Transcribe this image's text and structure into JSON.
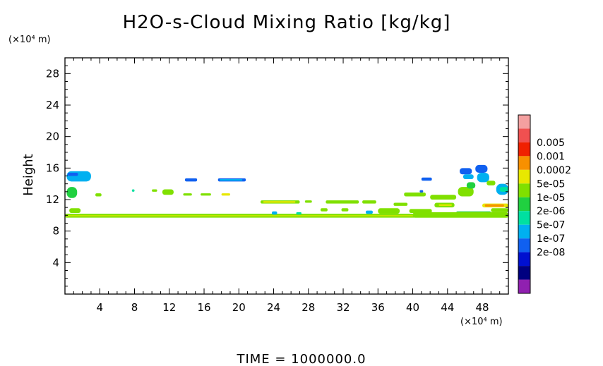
{
  "chart_data": {
    "type": "heatmap",
    "title": "H2O-s-Cloud Mixing Ratio [kg/kg]",
    "x_unit": "(×10⁴ m)",
    "y_unit": "(×10⁴ m)",
    "ylabel": "Height",
    "xlim": [
      0,
      51
    ],
    "ylim": [
      0,
      30
    ],
    "x_ticks": [
      4,
      8,
      12,
      16,
      20,
      24,
      28,
      32,
      36,
      40,
      44,
      48
    ],
    "y_ticks": [
      4,
      8,
      12,
      16,
      20,
      24,
      28
    ],
    "footer": "TIME  =  1000000.0",
    "legend": [
      {
        "label": "",
        "color": "#f4a0a0"
      },
      {
        "label": "0.005",
        "color": "#f05050"
      },
      {
        "label": "0.001",
        "color": "#f02000"
      },
      {
        "label": "0.0002",
        "color": "#f89000"
      },
      {
        "label": "5e-05",
        "color": "#e8e800"
      },
      {
        "label": "1e-05",
        "color": "#80e000"
      },
      {
        "label": "2e-06",
        "color": "#20d040"
      },
      {
        "label": "5e-07",
        "color": "#00e0a0"
      },
      {
        "label": "1e-07",
        "color": "#00b0f0"
      },
      {
        "label": "2e-08",
        "color": "#1060f0"
      },
      {
        "label": "",
        "color": "#0010d0"
      },
      {
        "label": "",
        "color": "#000080"
      },
      {
        "label": "",
        "color": "#9020b0"
      }
    ],
    "regions": [
      {
        "x0": 0,
        "x1": 51,
        "y0": 9.7,
        "y1": 10.2,
        "c": "#80e000"
      },
      {
        "x0": 0,
        "x1": 51,
        "y0": 9.9,
        "y1": 10.0,
        "c": "#e8e800"
      },
      {
        "x0": 0.2,
        "x1": 3.0,
        "y0": 14.3,
        "y1": 15.6,
        "c": "#00b0f0"
      },
      {
        "x0": 0.3,
        "x1": 1.5,
        "y0": 15.0,
        "y1": 15.4,
        "c": "#1060f0"
      },
      {
        "x0": 0.2,
        "x1": 1.4,
        "y0": 12.2,
        "y1": 13.6,
        "c": "#20d040"
      },
      {
        "x0": 0.5,
        "x1": 1.8,
        "y0": 10.3,
        "y1": 10.9,
        "c": "#80e000"
      },
      {
        "x0": 3.5,
        "x1": 4.2,
        "y0": 12.4,
        "y1": 12.8,
        "c": "#80e000"
      },
      {
        "x0": 7.7,
        "x1": 8.0,
        "y0": 13.0,
        "y1": 13.3,
        "c": "#00e0a0"
      },
      {
        "x0": 10.0,
        "x1": 10.6,
        "y0": 13.0,
        "y1": 13.3,
        "c": "#80e000"
      },
      {
        "x0": 11.2,
        "x1": 12.5,
        "y0": 12.6,
        "y1": 13.3,
        "c": "#80e000"
      },
      {
        "x0": 13.8,
        "x1": 15.2,
        "y0": 14.3,
        "y1": 14.7,
        "c": "#1060f0"
      },
      {
        "x0": 17.6,
        "x1": 20.8,
        "y0": 14.3,
        "y1": 14.7,
        "c": "#1060f0"
      },
      {
        "x0": 17.8,
        "x1": 20.4,
        "y0": 14.4,
        "y1": 14.6,
        "c": "#00b0f0"
      },
      {
        "x0": 13.6,
        "x1": 14.6,
        "y0": 12.5,
        "y1": 12.8,
        "c": "#80e000"
      },
      {
        "x0": 15.6,
        "x1": 16.8,
        "y0": 12.5,
        "y1": 12.8,
        "c": "#80e000"
      },
      {
        "x0": 18.0,
        "x1": 19.0,
        "y0": 12.5,
        "y1": 12.8,
        "c": "#e8e800"
      },
      {
        "x0": 22.5,
        "x1": 27.0,
        "y0": 11.5,
        "y1": 11.9,
        "c": "#80e000"
      },
      {
        "x0": 22.8,
        "x1": 26.5,
        "y0": 11.6,
        "y1": 11.8,
        "c": "#e8e800"
      },
      {
        "x0": 27.6,
        "x1": 28.4,
        "y0": 11.6,
        "y1": 11.9,
        "c": "#80e000"
      },
      {
        "x0": 30.0,
        "x1": 33.8,
        "y0": 11.5,
        "y1": 11.9,
        "c": "#80e000"
      },
      {
        "x0": 34.2,
        "x1": 35.8,
        "y0": 11.5,
        "y1": 11.9,
        "c": "#80e000"
      },
      {
        "x0": 29.4,
        "x1": 30.2,
        "y0": 10.5,
        "y1": 10.9,
        "c": "#80e000"
      },
      {
        "x0": 31.8,
        "x1": 32.6,
        "y0": 10.5,
        "y1": 10.9,
        "c": "#80e000"
      },
      {
        "x0": 34.6,
        "x1": 35.4,
        "y0": 10.2,
        "y1": 10.6,
        "c": "#00b0f0"
      },
      {
        "x0": 23.8,
        "x1": 24.4,
        "y0": 10.1,
        "y1": 10.5,
        "c": "#00b0f0"
      },
      {
        "x0": 26.6,
        "x1": 27.2,
        "y0": 10.1,
        "y1": 10.4,
        "c": "#00e0a0"
      },
      {
        "x0": 36.0,
        "x1": 38.5,
        "y0": 10.2,
        "y1": 10.9,
        "c": "#80e000"
      },
      {
        "x0": 37.8,
        "x1": 39.4,
        "y0": 11.2,
        "y1": 11.6,
        "c": "#80e000"
      },
      {
        "x0": 39.0,
        "x1": 41.5,
        "y0": 12.4,
        "y1": 12.9,
        "c": "#80e000"
      },
      {
        "x0": 39.6,
        "x1": 42.2,
        "y0": 10.3,
        "y1": 10.8,
        "c": "#80e000"
      },
      {
        "x0": 42.0,
        "x1": 45.0,
        "y0": 12.0,
        "y1": 12.6,
        "c": "#80e000"
      },
      {
        "x0": 42.5,
        "x1": 44.8,
        "y0": 11.0,
        "y1": 11.6,
        "c": "#80e000"
      },
      {
        "x0": 43.0,
        "x1": 44.5,
        "y0": 11.2,
        "y1": 11.4,
        "c": "#e8e800"
      },
      {
        "x0": 45.0,
        "x1": 49.0,
        "y0": 10.1,
        "y1": 10.5,
        "c": "#20d040"
      },
      {
        "x0": 46.5,
        "x1": 48.5,
        "y0": 10.2,
        "y1": 10.4,
        "c": "#e8e800"
      },
      {
        "x0": 41.0,
        "x1": 42.2,
        "y0": 14.4,
        "y1": 14.8,
        "c": "#1060f0"
      },
      {
        "x0": 40.8,
        "x1": 41.2,
        "y0": 12.9,
        "y1": 13.2,
        "c": "#1060f0"
      },
      {
        "x0": 45.4,
        "x1": 46.8,
        "y0": 15.2,
        "y1": 16.0,
        "c": "#1060f0"
      },
      {
        "x0": 45.8,
        "x1": 47.0,
        "y0": 14.6,
        "y1": 15.2,
        "c": "#00b0f0"
      },
      {
        "x0": 47.2,
        "x1": 48.6,
        "y0": 15.4,
        "y1": 16.4,
        "c": "#1060f0"
      },
      {
        "x0": 47.4,
        "x1": 48.8,
        "y0": 14.2,
        "y1": 15.4,
        "c": "#00b0f0"
      },
      {
        "x0": 45.2,
        "x1": 47.0,
        "y0": 12.4,
        "y1": 13.6,
        "c": "#80e000"
      },
      {
        "x0": 46.2,
        "x1": 47.2,
        "y0": 13.4,
        "y1": 14.2,
        "c": "#20d040"
      },
      {
        "x0": 48.5,
        "x1": 49.5,
        "y0": 13.8,
        "y1": 14.4,
        "c": "#80e000"
      },
      {
        "x0": 49.6,
        "x1": 51,
        "y0": 12.6,
        "y1": 14.0,
        "c": "#00b0f0"
      },
      {
        "x0": 50.0,
        "x1": 51,
        "y0": 13.0,
        "y1": 13.6,
        "c": "#00e0a0"
      },
      {
        "x0": 48.0,
        "x1": 51,
        "y0": 11.0,
        "y1": 11.5,
        "c": "#e8e800"
      },
      {
        "x0": 48.3,
        "x1": 50.5,
        "y0": 11.1,
        "y1": 11.4,
        "c": "#f89000"
      },
      {
        "x0": 49.0,
        "x1": 51,
        "y0": 10.4,
        "y1": 10.9,
        "c": "#80e000"
      },
      {
        "x0": 40.0,
        "x1": 51,
        "y0": 9.7,
        "y1": 10.4,
        "c": "#80e000"
      }
    ]
  }
}
